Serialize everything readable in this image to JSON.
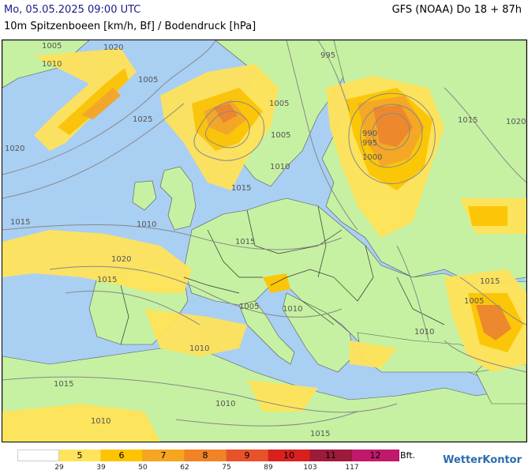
{
  "header": {
    "datetime": "Mo, 05.05.2025 09:00 UTC",
    "model": "GFS (NOAA) Do 18 + 87h",
    "subtitle": "10m Spitzenboeen [km/h, Bf] / Bodendruck [hPa]"
  },
  "legend": {
    "unit": "Bft.",
    "cells": [
      {
        "label": "",
        "color": "#ffffff"
      },
      {
        "label": "5",
        "color": "#ffe35a"
      },
      {
        "label": "6",
        "color": "#ffc400"
      },
      {
        "label": "7",
        "color": "#f7a520"
      },
      {
        "label": "8",
        "color": "#f18326"
      },
      {
        "label": "9",
        "color": "#e8512a"
      },
      {
        "label": "10",
        "color": "#d9201f"
      },
      {
        "label": "11",
        "color": "#9e1a3b"
      },
      {
        "label": "12",
        "color": "#c0196b"
      }
    ],
    "ticks": [
      "29",
      "39",
      "50",
      "62",
      "75",
      "89",
      "103",
      "117"
    ]
  },
  "isobars": [
    "1005",
    "1010",
    "1020",
    "1025",
    "1020",
    "1005",
    "1015",
    "1005",
    "995",
    "1005",
    "1015",
    "1020",
    "1005",
    "1010",
    "1010",
    "1015",
    "1015",
    "1020",
    "1015",
    "1010",
    "1005",
    "1015",
    "1010",
    "1010",
    "1015",
    "1010",
    "1010",
    "1015",
    "990",
    "995",
    "1000"
  ],
  "brand": "WetterKontor",
  "colors": {
    "sea": "#a9cff3",
    "land": "#c6f1a2",
    "isobar": "#888888",
    "border": "#333333"
  }
}
